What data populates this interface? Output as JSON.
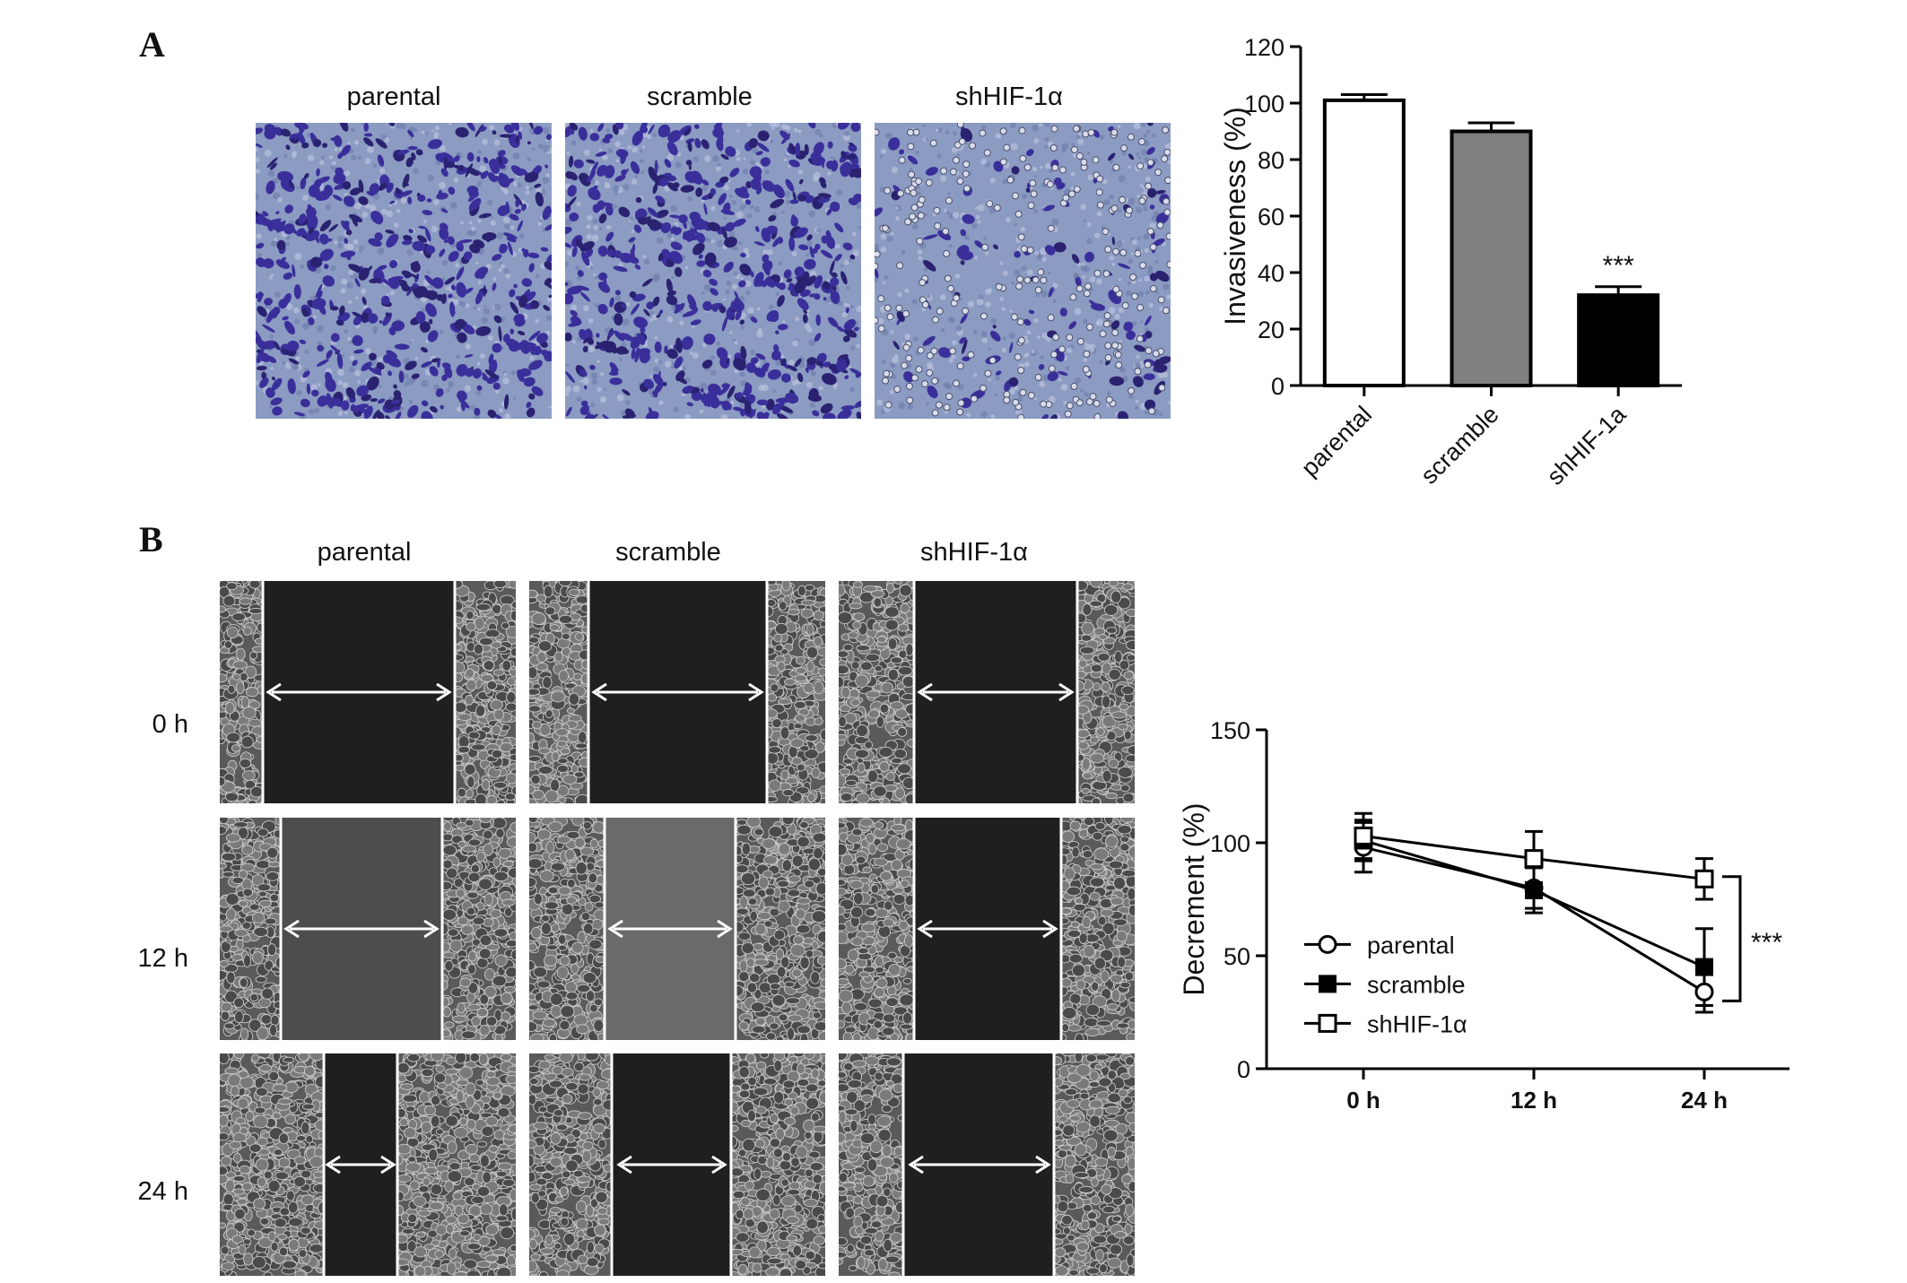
{
  "panels": {
    "a": {
      "letter": "A",
      "image_labels": [
        "parental",
        "scramble",
        "shHIF-1α"
      ]
    },
    "b": {
      "letter": "B",
      "image_labels": [
        "parental",
        "scramble",
        "shHIF-1α"
      ],
      "row_labels": [
        "0 h",
        "12 h",
        "24 h"
      ]
    }
  },
  "chart_data": [
    {
      "type": "bar",
      "categories": [
        "parental",
        "scramble",
        "shHIF-1a"
      ],
      "values": [
        101,
        90,
        32
      ],
      "errors": [
        2,
        3,
        3
      ],
      "bar_colors": [
        "#ffffff",
        "#808080",
        "#000000"
      ],
      "ylabel": "Invasiveness (%)",
      "ylim": [
        0,
        120
      ],
      "yticks": [
        0,
        20,
        40,
        60,
        80,
        100,
        120
      ],
      "annotation": {
        "text": "***",
        "category": "shHIF-1a"
      },
      "grid": false
    },
    {
      "type": "line",
      "x": [
        "0 h",
        "12 h",
        "24 h"
      ],
      "ylabel": "Decrement (%)",
      "ylim": [
        0,
        150
      ],
      "yticks": [
        0,
        50,
        100,
        150
      ],
      "grid": false,
      "legend_position": "bottom-left",
      "series": [
        {
          "name": "parental",
          "marker": "open-circle",
          "values": [
            98,
            80,
            34
          ],
          "errors": [
            11,
            9,
            9
          ]
        },
        {
          "name": "scramble",
          "marker": "filled-square",
          "values": [
            101,
            79,
            45
          ],
          "errors": [
            9,
            10,
            17
          ]
        },
        {
          "name": "shHIF-1α",
          "marker": "open-square",
          "values": [
            103,
            93,
            84
          ],
          "errors": [
            10,
            12,
            9
          ]
        }
      ],
      "annotation": {
        "text": "***"
      }
    }
  ]
}
